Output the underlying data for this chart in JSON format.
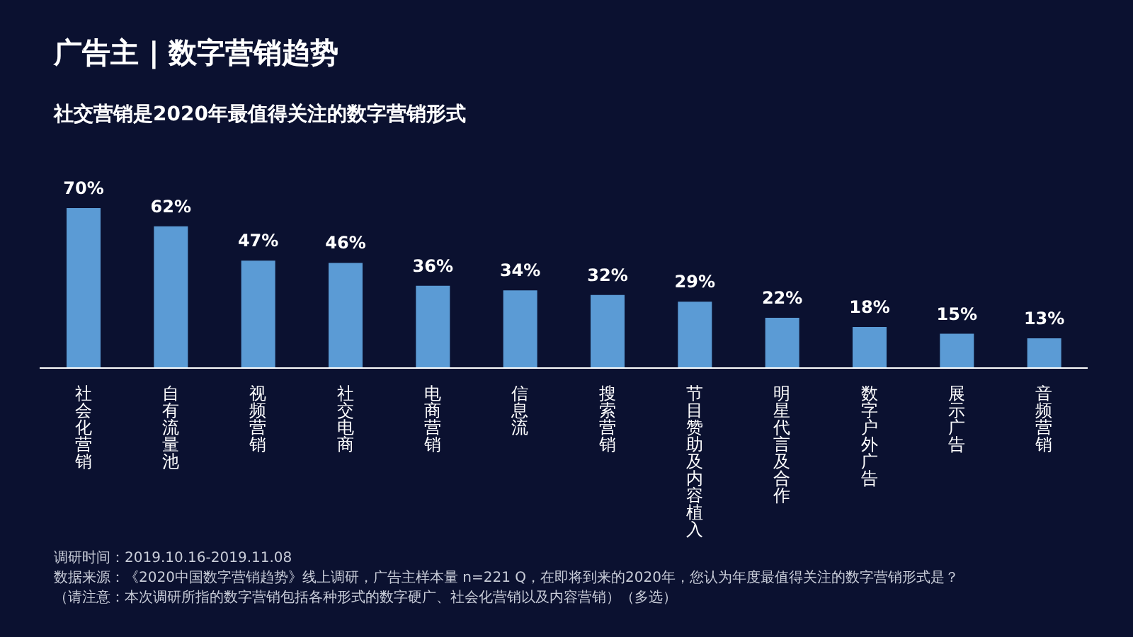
{
  "chart_data": {
    "type": "bar",
    "title": "广告主 | 数字营销趋势",
    "subtitle": "社交营销是2020年最值得关注的数字营销形式",
    "categories": [
      "社会化营销",
      "自有流量池",
      "视频营销",
      "社交电商",
      "电商营销",
      "信息流",
      "搜索营销",
      "节目赞助及内容植入",
      "明星代言及合作",
      "数字户外广告",
      "展示广告",
      "音频营销"
    ],
    "values": [
      70,
      62,
      47,
      46,
      36,
      34,
      32,
      29,
      22,
      18,
      15,
      13
    ],
    "value_labels": [
      "70%",
      "62%",
      "47%",
      "46%",
      "36%",
      "34%",
      "32%",
      "29%",
      "22%",
      "18%",
      "15%",
      "13%"
    ],
    "color": "#5b9bd5",
    "annotations": [
      "调研时间：2019.10.16-2019.11.08",
      "数据来源：《2020中国数字营销趋势》线上调研，广告主样本量 n=221 Q，在即将到来的2020年，您认为年度最值得关注的数字营销形式是？（请注意：本次调研所指的数字营销包括各种形式的数字硬广、社会化营销以及内容营销）（多选）"
    ]
  }
}
